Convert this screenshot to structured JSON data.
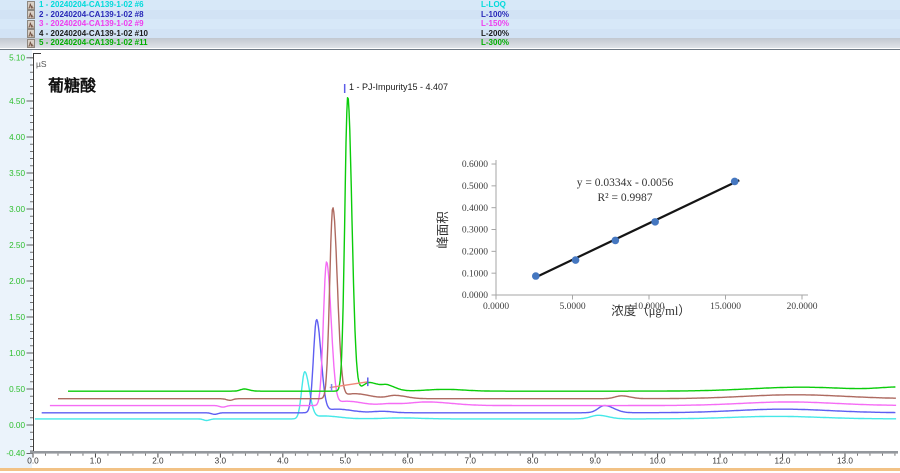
{
  "legend": {
    "selected_index": 4
  },
  "chart_data": [
    {
      "type": "line",
      "kind": "chromatogram-overlay",
      "title": "葡糖酸",
      "y_unit": "µS",
      "x_range_min": [
        0.0,
        13.8
      ],
      "y_range_uS": [
        -0.4,
        5.1
      ],
      "x_tick_labels": [
        "0.0",
        "1.0",
        "2.0",
        "3.0",
        "4.0",
        "5.0",
        "6.0",
        "7.0",
        "8.0",
        "9.0",
        "10.0",
        "11.0",
        "12.0",
        "13.0"
      ],
      "x_tick_values": [
        0,
        1,
        2,
        3,
        4,
        5,
        6,
        7,
        8,
        9,
        10,
        11,
        12,
        13
      ],
      "y_tick_labels": [
        "5.10",
        "4.50",
        "4.00",
        "3.50",
        "3.00",
        "2.50",
        "2.00",
        "1.50",
        "1.00",
        "0.50",
        "0.00",
        "-0.40"
      ],
      "y_tick_values": [
        5.1,
        4.5,
        4.0,
        3.5,
        3.0,
        2.5,
        2.0,
        1.5,
        1.0,
        0.5,
        0.0,
        -0.4
      ],
      "peak_annotation": "1 - PJ-Impurity15 - 4.407",
      "peak": {
        "number": 1,
        "name": "PJ-Impurity15",
        "retention_time_min": 4.407
      },
      "series": [
        {
          "label": "1 - 20240204-CA139-1-02 #6",
          "level": "L-LOQ",
          "color": "#45E8E8",
          "legend_color": "#00DADA",
          "baseline_uS": 0.085,
          "start_min": 0.03,
          "peak_apex_uS": 0.74,
          "features": [
            [
              2.78,
              -0.022,
              0.05,
              0.05
            ],
            [
              4.35,
              0.65,
              0.05,
              0.075
            ],
            [
              4.66,
              0.04,
              0.15,
              0.25
            ],
            [
              5.9,
              0.013,
              0.3,
              0.3
            ],
            [
              9.05,
              0.05,
              0.12,
              0.16
            ],
            [
              11.9,
              0.035,
              0.7,
              0.7
            ]
          ]
        },
        {
          "label": "2 - 20240204-CA139-1-02 #8",
          "level": "L-100%",
          "color": "#5E5EF2",
          "legend_color": "#2828B8",
          "baseline_uS": 0.17,
          "start_min": 0.14,
          "peak_apex_uS": 1.46,
          "features": [
            [
              2.91,
              -0.022,
              0.05,
              0.05
            ],
            [
              4.54,
              1.29,
              0.05,
              0.072
            ],
            [
              4.86,
              0.05,
              0.15,
              0.25
            ],
            [
              5.6,
              0.02,
              0.15,
              0.15
            ],
            [
              9.15,
              0.1,
              0.1,
              0.15
            ],
            [
              12.0,
              0.05,
              0.75,
              0.75
            ]
          ]
        },
        {
          "label": "3 - 20240204-CA139-1-02 #9",
          "level": "L-150%",
          "color": "#F56CF5",
          "legend_color": "#EE3CEE",
          "baseline_uS": 0.27,
          "start_min": 0.27,
          "peak_apex_uS": 2.26,
          "features": [
            [
              3.04,
              -0.022,
              0.05,
              0.05
            ],
            [
              4.7,
              1.99,
              0.05,
              0.072
            ],
            [
              5.02,
              0.06,
              0.15,
              0.25
            ],
            [
              6.3,
              0.05,
              0.3,
              0.4
            ],
            [
              5.7,
              0.02,
              0.15,
              0.15
            ],
            [
              12.1,
              0.05,
              0.75,
              0.75
            ]
          ]
        },
        {
          "label": "4 - 20240204-CA139-1-02 #10",
          "level": "L-200%",
          "color": "#AE6A60",
          "legend_color": "#1C1C1C",
          "baseline_uS": 0.365,
          "start_min": 0.4,
          "peak_apex_uS": 3.01,
          "features": [
            [
              3.15,
              -0.022,
              0.05,
              0.05
            ],
            [
              4.8,
              2.65,
              0.05,
              0.072
            ],
            [
              5.14,
              0.07,
              0.15,
              0.25
            ],
            [
              5.8,
              0.045,
              0.12,
              0.18
            ],
            [
              9.42,
              0.04,
              0.1,
              0.14
            ],
            [
              12.2,
              0.055,
              0.8,
              0.8
            ]
          ]
        },
        {
          "label": "5 - 20240204-CA139-1-02 #11",
          "level": "L-300%",
          "color": "#0ACC0A",
          "legend_color": "#00AE00",
          "baseline_uS": 0.47,
          "start_min": 0.56,
          "peak_apex_uS": 4.56,
          "features": [
            [
              3.38,
              0.03,
              0.06,
              0.08
            ],
            [
              5.04,
              4.09,
              0.048,
              0.065
            ],
            [
              5.38,
              0.12,
              0.1,
              0.18
            ],
            [
              5.68,
              0.06,
              0.08,
              0.14
            ],
            [
              6.6,
              0.025,
              0.3,
              0.3
            ],
            [
              12.3,
              0.055,
              0.8,
              0.8
            ],
            [
              13.9,
              0.05,
              0.35,
              0.35
            ]
          ]
        }
      ],
      "integration_baseline": {
        "x1": 4.75,
        "y1": 0.52,
        "x2": 5.36,
        "y2": 0.6,
        "color": "#F08878"
      },
      "peak_start_marker": {
        "x": 4.78,
        "y1": 0.47,
        "y2": 0.57,
        "color": "#8080EE"
      },
      "peak_end_marker": {
        "x": 5.36,
        "y1": 0.54,
        "y2": 0.66,
        "color": "#5C5CE8"
      },
      "apex_marker": {
        "x": 4.99,
        "color": "#5C5CE8"
      }
    },
    {
      "type": "scatter",
      "kind": "calibration-curve",
      "x": [
        2.6,
        5.2,
        7.8,
        10.4,
        15.6
      ],
      "y": [
        0.087,
        0.16,
        0.25,
        0.335,
        0.52
      ],
      "trendline": {
        "slope": 0.0334,
        "intercept": -0.0056,
        "r2": 0.9987,
        "x_start": 2.45,
        "x_end": 15.9
      },
      "equation_label": "y = 0.0334x - 0.0056",
      "r2_label": "R² = 0.9987",
      "xlabel": "浓度（μg/ml）",
      "ylabel": "峰面积",
      "xlim": [
        0,
        20
      ],
      "ylim": [
        0,
        0.6
      ],
      "x_tick_labels": [
        "0.0000",
        "5.0000",
        "10.0000",
        "15.0000",
        "20.0000"
      ],
      "x_tick_values": [
        0,
        5,
        10,
        15,
        20
      ],
      "y_tick_labels": [
        "0.0000",
        "0.1000",
        "0.2000",
        "0.3000",
        "0.4000",
        "0.5000",
        "0.6000"
      ],
      "y_tick_values": [
        0,
        0.1,
        0.2,
        0.3,
        0.4,
        0.5,
        0.6
      ],
      "grid": false,
      "legend_position": "none",
      "point_color": "#4577C0",
      "line_color": "#151515"
    }
  ]
}
